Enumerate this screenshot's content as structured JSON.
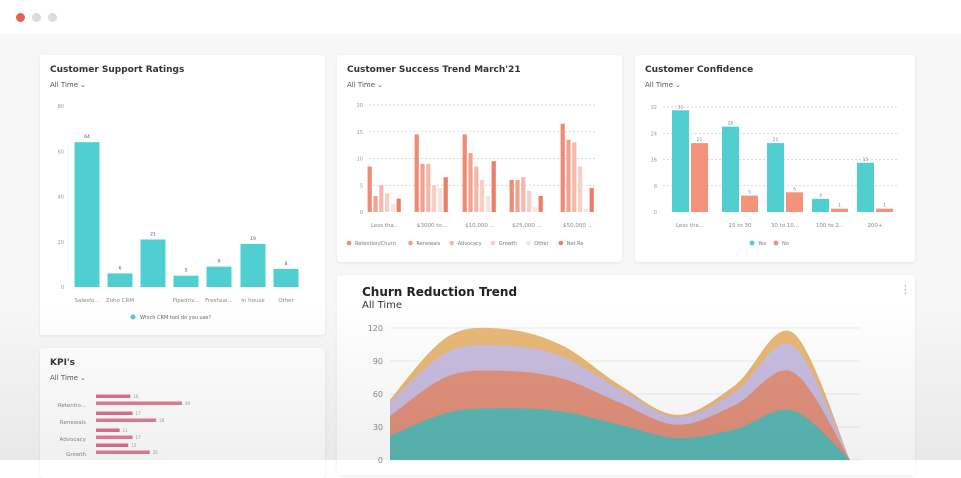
{
  "window": {
    "controls": [
      "close",
      "minimize",
      "maximize"
    ],
    "colors": {
      "close": "#e8604c",
      "minimize": "#d9d9d9",
      "maximize": "#d9d9d9"
    }
  },
  "colors": {
    "teal": "#4fcfd0",
    "salmon": "#f4937c",
    "kpi_pink": "#d9738f"
  },
  "cards": {
    "support": {
      "title": "Customer Support Ratings",
      "range": "All Time"
    },
    "success": {
      "title": "Customer Success Trend March'21",
      "range": "All Time"
    },
    "confidence": {
      "title": "Customer Confidence",
      "range": "All Time"
    },
    "kpi": {
      "title": "KPI's",
      "range": "All Time"
    },
    "churn": {
      "title": "Churn Reduction Trend",
      "range": "All Time",
      "menu_icon": "kebab-icon"
    }
  },
  "chart_data": [
    {
      "id": "support",
      "type": "bar",
      "categories": [
        "Salesfo...",
        "Zoho CRM",
        "",
        "Pipedriv...",
        "Freshsal...",
        "In house",
        "Other"
      ],
      "series": [
        {
          "name": "Which CRM tool do you use?",
          "values": [
            64,
            6,
            21,
            5,
            9,
            19,
            8
          ],
          "color": "#4fcfd0"
        }
      ],
      "yticks": [
        0,
        20,
        40,
        60,
        80
      ],
      "ylim": [
        0,
        80
      ],
      "data_labels": true,
      "legend": "bottom"
    },
    {
      "id": "success",
      "type": "bar",
      "categories": [
        "Less tha...",
        "$3000 to...",
        "$10,000 ...",
        "$25,000 ...",
        "$50,000 ..."
      ],
      "series": [
        {
          "name": "Retention/Churn",
          "values": [
            8.5,
            14.5,
            14.5,
            6,
            16.5
          ],
          "color": "#f08a72"
        },
        {
          "name": "Renewals",
          "values": [
            3,
            9,
            11,
            6,
            13.5
          ],
          "color": "#f4a08c"
        },
        {
          "name": "Advocacy",
          "values": [
            5,
            9,
            8.5,
            6.5,
            13
          ],
          "color": "#f6b8a8"
        },
        {
          "name": "Growth",
          "values": [
            3.5,
            5,
            6,
            4,
            8.5
          ],
          "color": "#f8cfc4"
        },
        {
          "name": "Other",
          "values": [
            1.5,
            4.5,
            3,
            1,
            0.5
          ],
          "color": "#fbe2da"
        },
        {
          "name": "Net Re",
          "values": [
            2.5,
            6.5,
            9.5,
            3,
            4.5
          ],
          "color": "#ee7d68"
        }
      ],
      "yticks": [
        0,
        5,
        10,
        15,
        20
      ],
      "ylim": [
        0,
        20
      ],
      "grid": "dashed",
      "legend": "bottom"
    },
    {
      "id": "confidence",
      "type": "bar",
      "categories": [
        "Less tha...",
        "15 to 30",
        "30 to 10...",
        "100 to 2...",
        "200+"
      ],
      "series": [
        {
          "name": "Yes",
          "values": [
            31,
            26,
            21,
            4,
            15
          ],
          "color": "#4fcfd0"
        },
        {
          "name": "No",
          "values": [
            21,
            5,
            6,
            1,
            1
          ],
          "color": "#f4937c"
        }
      ],
      "yticks": [
        0,
        8,
        16,
        24,
        32
      ],
      "ylim": [
        0,
        32
      ],
      "grid": "dashed",
      "data_labels": true,
      "legend": "bottom"
    },
    {
      "id": "kpi",
      "type": "bar",
      "orientation": "horizontal",
      "categories": [
        "Retentio...",
        "Renewals",
        "Advocacy",
        "Growth"
      ],
      "series": [
        {
          "values": [
            16,
            17,
            11,
            15
          ],
          "color": "#d9738f"
        },
        {
          "values": [
            40,
            28,
            17,
            25
          ],
          "color": "#e07f98"
        }
      ],
      "data_labels": true
    },
    {
      "id": "churn",
      "type": "area",
      "stacked": true,
      "series": [
        {
          "values": [
            22,
            43,
            47,
            44,
            32,
            20,
            28,
            45,
            0
          ],
          "color": "#5bb8b4"
        },
        {
          "values": [
            18,
            33,
            34,
            30,
            20,
            12,
            22,
            35,
            0
          ],
          "color": "#e1917b"
        },
        {
          "values": [
            13,
            22,
            23,
            20,
            12,
            7,
            12,
            24,
            0
          ],
          "color": "#c9bde0"
        },
        {
          "values": [
            2,
            14,
            15,
            10,
            4,
            2,
            6,
            12,
            0
          ],
          "color": "#e8b877"
        }
      ],
      "yticks": [
        0,
        30,
        60,
        90,
        120
      ],
      "ylim": [
        0,
        120
      ],
      "grid": true
    }
  ]
}
